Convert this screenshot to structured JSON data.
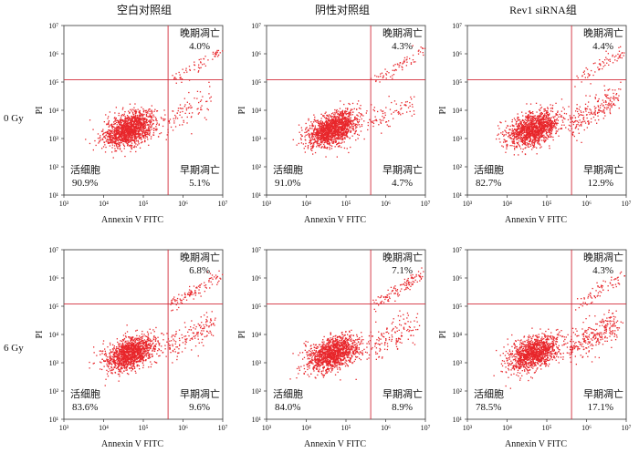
{
  "column_titles": [
    "空白对照组",
    "阴性对照组",
    "Rev1 siRNA组"
  ],
  "row_labels": [
    "0 Gy",
    "6 Gy"
  ],
  "colors": {
    "dots": "#e8262b",
    "gate": "#d22b3a",
    "frame": "#333333"
  },
  "chart_data": [
    {
      "type": "scatter",
      "row": "0 Gy",
      "group": "空白对照组",
      "xlabel": "Annexin V FITC",
      "ylabel": "PI",
      "scale": "log",
      "xlim": [
        1000,
        10000000
      ],
      "ylim": [
        10,
        10000000
      ],
      "xticks": [
        "10³",
        "10⁴",
        "10⁵",
        "10⁶",
        "10⁷"
      ],
      "yticks": [
        "10¹",
        "10²",
        "10³",
        "10⁴",
        "10⁵",
        "10⁶",
        "10⁷"
      ],
      "gate": {
        "x": 420000,
        "y": 120000
      },
      "quadrants": {
        "upper_right": {
          "label": "晚期凋亡",
          "value": "4.0%"
        },
        "lower_left": {
          "label": "活细胞",
          "value": "90.9%"
        },
        "lower_right": {
          "label": "早期凋亡",
          "value": "5.1%"
        }
      }
    },
    {
      "type": "scatter",
      "row": "0 Gy",
      "group": "阴性对照组",
      "xlabel": "Annexin V FITC",
      "ylabel": "PI",
      "scale": "log",
      "xlim": [
        1000,
        10000000
      ],
      "ylim": [
        10,
        10000000
      ],
      "xticks": [
        "10³",
        "10⁴",
        "10⁵",
        "10⁶",
        "10⁷"
      ],
      "yticks": [
        "10¹",
        "10²",
        "10³",
        "10⁴",
        "10⁵",
        "10⁶",
        "10⁷"
      ],
      "gate": {
        "x": 420000,
        "y": 120000
      },
      "quadrants": {
        "upper_right": {
          "label": "晚期凋亡",
          "value": "4.3%"
        },
        "lower_left": {
          "label": "活细胞",
          "value": "91.0%"
        },
        "lower_right": {
          "label": "早期凋亡",
          "value": "4.7%"
        }
      }
    },
    {
      "type": "scatter",
      "row": "0 Gy",
      "group": "Rev1 siRNA组",
      "xlabel": "Annexin V FITC",
      "ylabel": "PI",
      "scale": "log",
      "xlim": [
        1000,
        10000000
      ],
      "ylim": [
        10,
        10000000
      ],
      "xticks": [
        "10³",
        "10⁴",
        "10⁵",
        "10⁶",
        "10⁷"
      ],
      "yticks": [
        "10¹",
        "10²",
        "10³",
        "10⁴",
        "10⁵",
        "10⁶",
        "10⁷"
      ],
      "gate": {
        "x": 420000,
        "y": 120000
      },
      "quadrants": {
        "upper_right": {
          "label": "晚期凋亡",
          "value": "4.4%"
        },
        "lower_left": {
          "label": "活细胞",
          "value": "82.7%"
        },
        "lower_right": {
          "label": "早期凋亡",
          "value": "12.9%"
        }
      }
    },
    {
      "type": "scatter",
      "row": "6 Gy",
      "group": "空白对照组",
      "xlabel": "Annexin V FITC",
      "ylabel": "PI",
      "scale": "log",
      "xlim": [
        1000,
        10000000
      ],
      "ylim": [
        10,
        10000000
      ],
      "xticks": [
        "10³",
        "10⁴",
        "10⁵",
        "10⁶",
        "10⁷"
      ],
      "yticks": [
        "10¹",
        "10²",
        "10³",
        "10⁴",
        "10⁵",
        "10⁶",
        "10⁷"
      ],
      "gate": {
        "x": 420000,
        "y": 120000
      },
      "quadrants": {
        "upper_right": {
          "label": "晚期凋亡",
          "value": "6.8%"
        },
        "lower_left": {
          "label": "活细胞",
          "value": "83.6%"
        },
        "lower_right": {
          "label": "早期凋亡",
          "value": "9.6%"
        }
      }
    },
    {
      "type": "scatter",
      "row": "6 Gy",
      "group": "阴性对照组",
      "xlabel": "Annexin V FITC",
      "ylabel": "PI",
      "scale": "log",
      "xlim": [
        1000,
        10000000
      ],
      "ylim": [
        10,
        10000000
      ],
      "xticks": [
        "10³",
        "10⁴",
        "10⁵",
        "10⁶",
        "10⁷"
      ],
      "yticks": [
        "10¹",
        "10²",
        "10³",
        "10⁴",
        "10⁵",
        "10⁶",
        "10⁷"
      ],
      "gate": {
        "x": 420000,
        "y": 120000
      },
      "quadrants": {
        "upper_right": {
          "label": "晚期凋亡",
          "value": "7.1%"
        },
        "lower_left": {
          "label": "活细胞",
          "value": "84.0%"
        },
        "lower_right": {
          "label": "早期凋亡",
          "value": "8.9%"
        }
      }
    },
    {
      "type": "scatter",
      "row": "6 Gy",
      "group": "Rev1 siRNA组",
      "xlabel": "Annexin V FITC",
      "ylabel": "PI",
      "scale": "log",
      "xlim": [
        1000,
        10000000
      ],
      "ylim": [
        10,
        10000000
      ],
      "xticks": [
        "10³",
        "10⁴",
        "10⁵",
        "10⁶",
        "10⁷"
      ],
      "yticks": [
        "10¹",
        "10²",
        "10³",
        "10⁴",
        "10⁵",
        "10⁶",
        "10⁷"
      ],
      "gate": {
        "x": 420000,
        "y": 120000
      },
      "quadrants": {
        "upper_right": {
          "label": "晚期凋亡",
          "value": "4.3%"
        },
        "lower_left": {
          "label": "活细胞",
          "value": "78.5%"
        },
        "lower_right": {
          "label": "早期凋亡",
          "value": "17.1%"
        }
      }
    }
  ]
}
